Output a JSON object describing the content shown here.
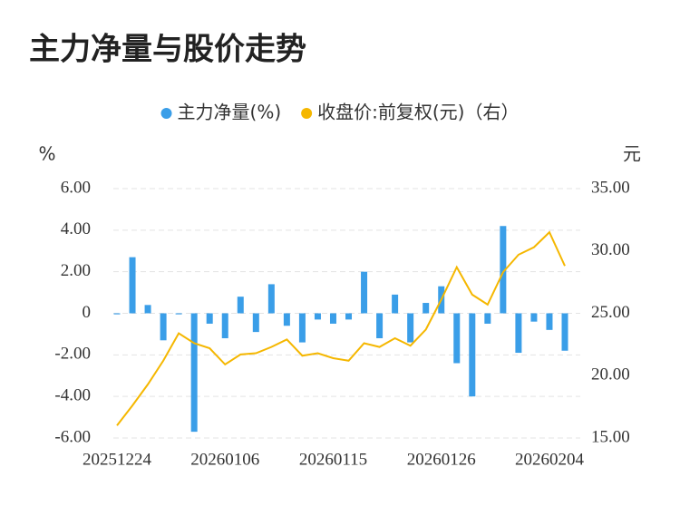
{
  "chart_data": {
    "type": "bar-line",
    "title": "主力净量与股价走势",
    "y_unit": "%",
    "y2_unit": "元",
    "categories": [
      "20251224",
      null,
      null,
      null,
      null,
      null,
      null,
      "20260106",
      null,
      null,
      null,
      null,
      null,
      null,
      "20260115",
      null,
      null,
      null,
      null,
      null,
      null,
      "20260126",
      null,
      null,
      null,
      null,
      null,
      null,
      "20260204",
      null
    ],
    "series": [
      {
        "name": "主力净量(%)",
        "type": "bar",
        "color": "#3a9ee8",
        "axis": "y",
        "values": [
          -0.05,
          2.7,
          0.4,
          -1.3,
          -0.05,
          -5.7,
          -0.5,
          -1.2,
          0.8,
          -0.9,
          1.4,
          -0.6,
          -1.4,
          -0.3,
          -0.5,
          -0.3,
          2.0,
          -1.2,
          0.9,
          -1.4,
          0.5,
          1.3,
          -2.4,
          -4.0,
          -0.5,
          4.2,
          -1.9,
          -0.4,
          -0.8,
          -1.8
        ]
      },
      {
        "name": "收盘价:前复权(元)（右）",
        "type": "line",
        "color": "#f5b700",
        "axis": "y2",
        "values": [
          16.0,
          17.6,
          19.3,
          21.2,
          23.4,
          22.6,
          22.2,
          20.9,
          21.7,
          21.8,
          22.3,
          22.9,
          21.6,
          21.8,
          21.4,
          21.2,
          22.6,
          22.3,
          23.0,
          22.4,
          23.7,
          26.1,
          28.7,
          26.5,
          25.7,
          28.3,
          29.7,
          30.3,
          31.5,
          28.8
        ]
      }
    ],
    "ylim": [
      -6,
      6
    ],
    "yticks": [
      {
        "value": 6,
        "label": "6.00"
      },
      {
        "value": 4,
        "label": "4.00"
      },
      {
        "value": 2,
        "label": "2.00"
      },
      0,
      {
        "value": -2,
        "label": "-2.00"
      },
      {
        "value": -4,
        "label": "-4.00"
      },
      {
        "value": -6,
        "label": "-6.00"
      }
    ],
    "y2lim": [
      15,
      35
    ],
    "y2ticks": [
      {
        "value": 35,
        "label": "35.00"
      },
      {
        "value": 30,
        "label": "30.00"
      },
      {
        "value": 25,
        "label": "25.00"
      },
      {
        "value": 20,
        "label": "20.00"
      },
      {
        "value": 15,
        "label": "15.00"
      }
    ],
    "grid": true,
    "legend": "top"
  }
}
